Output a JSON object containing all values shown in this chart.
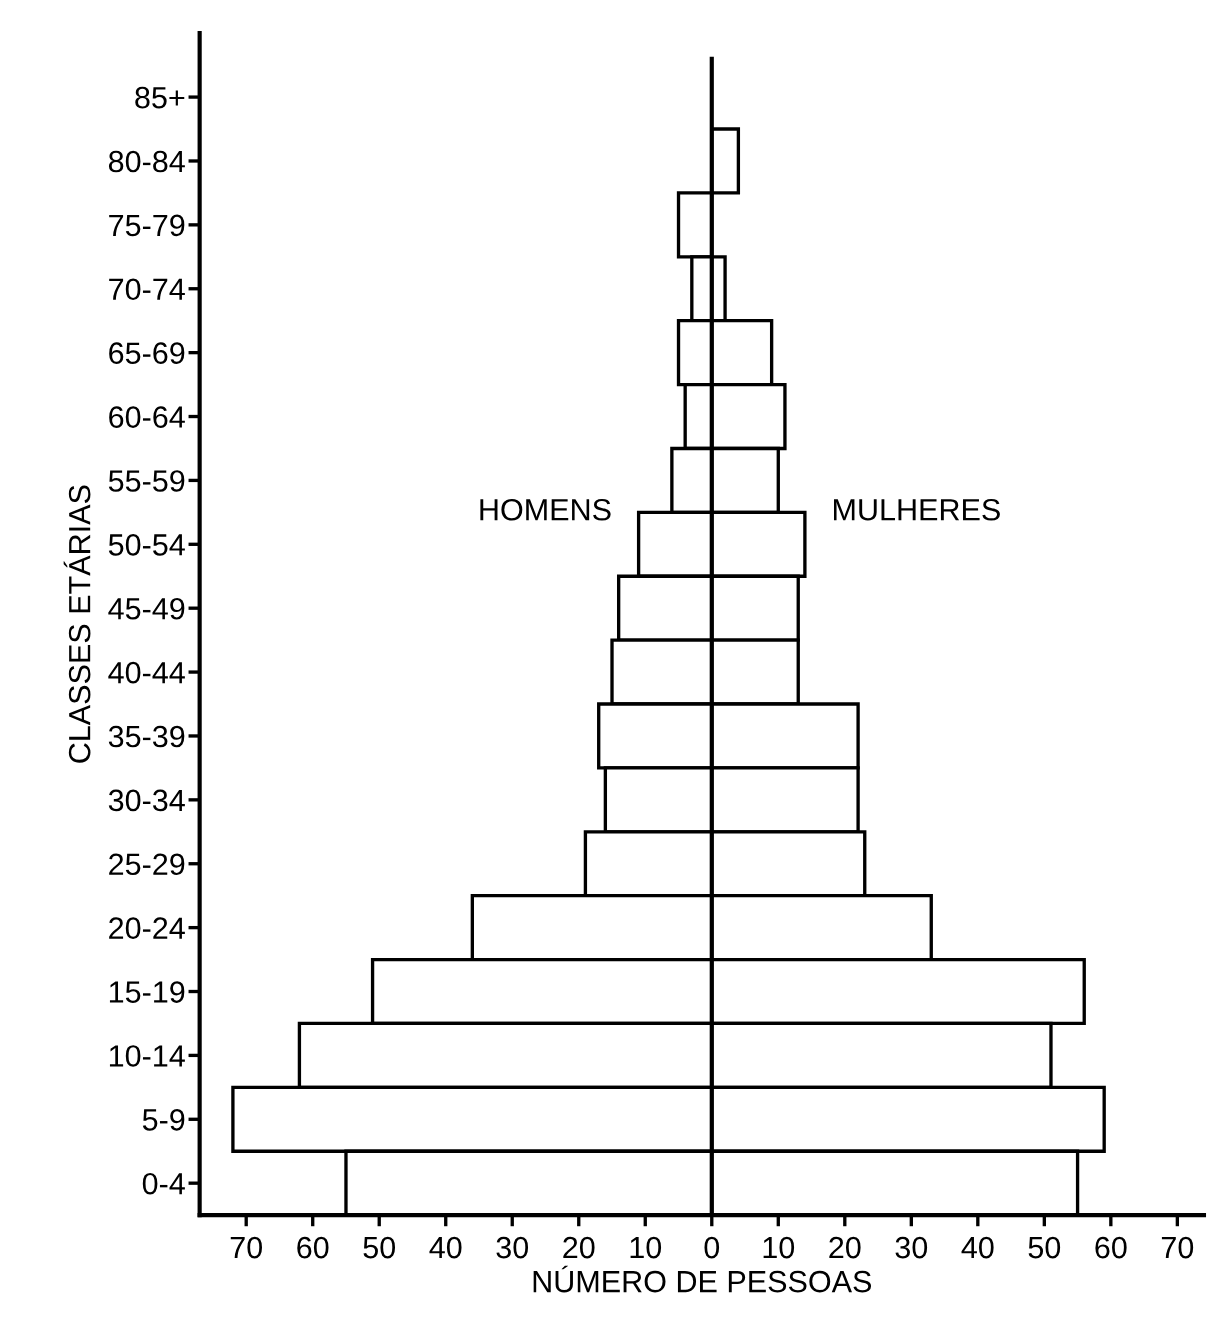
{
  "chart_data": {
    "type": "bar",
    "orientation": "horizontal",
    "ylabel": "CLASSES ETÁRIAS",
    "xlabel": "NÚMERO DE PESSOAS",
    "categories": [
      "85+",
      "80-84",
      "75-79",
      "70-74",
      "65-69",
      "60-64",
      "55-59",
      "50-54",
      "45-49",
      "40-44",
      "35-39",
      "30-34",
      "25-29",
      "20-24",
      "15-19",
      "10-14",
      "5-9",
      "0-4"
    ],
    "series": [
      {
        "name": "HOMENS",
        "color": "#ffffff",
        "values": [
          null,
          null,
          -5,
          -3,
          -5,
          -4,
          -6,
          -11,
          -14,
          -15,
          -17,
          -16,
          -19,
          -36,
          -51,
          -62,
          -72,
          -55
        ]
      },
      {
        "name": "MULHERES",
        "color": "#ffffff",
        "values": [
          null,
          4,
          null,
          2,
          9,
          11,
          10,
          14,
          13,
          13,
          22,
          22,
          23,
          33,
          56,
          51,
          59,
          55
        ]
      }
    ],
    "xlim": [
      -77,
      74
    ],
    "xticks": [
      {
        "value": -70,
        "label": "70"
      },
      {
        "value": -60,
        "label": "60"
      },
      {
        "value": -50,
        "label": "50"
      },
      {
        "value": -40,
        "label": "40"
      },
      {
        "value": -30,
        "label": "30"
      },
      {
        "value": -20,
        "label": "20"
      },
      {
        "value": -10,
        "label": "10"
      },
      0,
      10,
      20,
      30,
      40,
      50,
      60,
      70
    ],
    "ref_lines": [
      {
        "axis": "x",
        "value": 0,
        "label": null,
        "color": "#000000"
      }
    ],
    "stacked": true,
    "grid": false,
    "legend": false
  }
}
